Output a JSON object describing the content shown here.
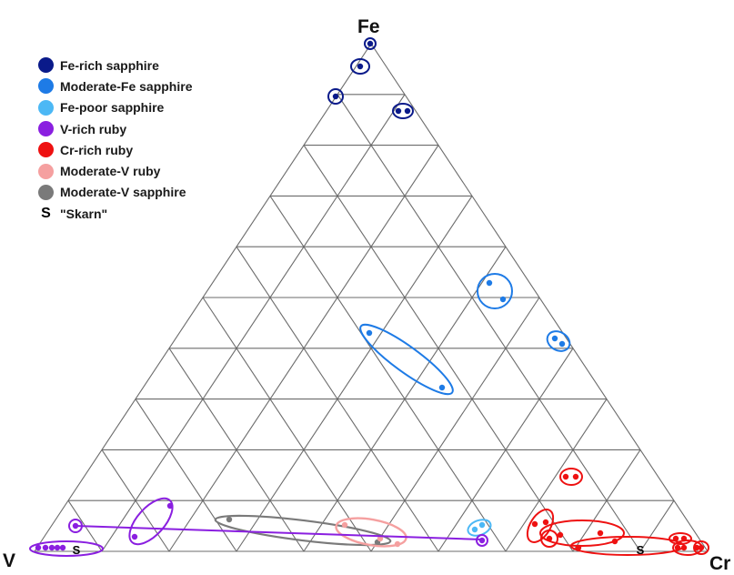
{
  "labels": {
    "top": "Fe",
    "left": "V",
    "right": "Cr"
  },
  "legend": [
    {
      "label": "Fe-rich sapphire",
      "color": "#0a1a8a"
    },
    {
      "label": "Moderate-Fe sapphire",
      "color": "#1e7be6"
    },
    {
      "label": "Fe-poor sapphire",
      "color": "#4cb8f5"
    },
    {
      "label": "V-rich ruby",
      "color": "#8a1fe0"
    },
    {
      "label": "Cr-rich ruby",
      "color": "#ee1111"
    },
    {
      "label": "Moderate-V ruby",
      "color": "#f5a0a0"
    },
    {
      "label": "Moderate-V sapphire",
      "color": "#7a7a7a"
    }
  ],
  "skarn": {
    "symbol": "S",
    "label": "\"Skarn\""
  },
  "diagram": {
    "type": "ternary",
    "divisions": 10,
    "groups": [
      {
        "name": "Fe-rich sapphire",
        "color": "#0a1a8a",
        "points": [
          [
            0.99,
            0.0
          ],
          [
            0.91,
            0.02
          ],
          [
            0.8,
            0.1
          ],
          [
            0.81,
            0.16
          ]
        ]
      },
      {
        "name": "Moderate-Fe sapphire",
        "color": "#1e7be6",
        "points": [
          [
            0.46,
            0.37
          ],
          [
            0.44,
            0.43
          ],
          [
            0.41,
            0.53
          ],
          [
            0.4,
            0.54
          ],
          [
            0.4,
            0.35
          ],
          [
            0.43,
            0.29
          ],
          [
            0.15,
            0.52
          ]
        ]
      },
      {
        "name": "Fe-poor sapphire",
        "color": "#4cb8f5",
        "points": [
          [
            0.03,
            0.61
          ],
          [
            0.04,
            0.63
          ]
        ]
      },
      {
        "name": "V-rich ruby",
        "color": "#8a1fe0",
        "points": [
          [
            0.05,
            0.06
          ],
          [
            0.01,
            0.01
          ],
          [
            0.005,
            0.025
          ],
          [
            0.01,
            0.05
          ],
          [
            0.01,
            0.04
          ],
          [
            0.01,
            0.08
          ],
          [
            0.06,
            0.2
          ],
          [
            0.08,
            0.25
          ],
          [
            0.01,
            0.62
          ]
        ]
      },
      {
        "name": "Cr-rich ruby",
        "color": "#ee1111",
        "points": [
          [
            0.18,
            0.75
          ],
          [
            0.18,
            0.77
          ],
          [
            0.07,
            0.75
          ],
          [
            0.08,
            0.77
          ],
          [
            0.04,
            0.75
          ],
          [
            0.01,
            0.82
          ],
          [
            0.02,
            0.81
          ],
          [
            0.02,
            0.87
          ],
          [
            0.01,
            0.94
          ],
          [
            0.01,
            0.97
          ],
          [
            0.005,
            0.95
          ],
          [
            0.005,
            0.97
          ],
          [
            0.005,
            0.985
          ]
        ]
      },
      {
        "name": "Moderate-V ruby",
        "color": "#f5a0a0",
        "points": [
          [
            0.03,
            0.51
          ],
          [
            0.05,
            0.45
          ],
          [
            0.03,
            0.48
          ]
        ]
      },
      {
        "name": "Moderate-V sapphire",
        "color": "#7a7a7a",
        "points": [
          [
            0.06,
            0.28
          ],
          [
            0.02,
            0.48
          ],
          [
            0.01,
            0.49
          ]
        ]
      }
    ]
  }
}
